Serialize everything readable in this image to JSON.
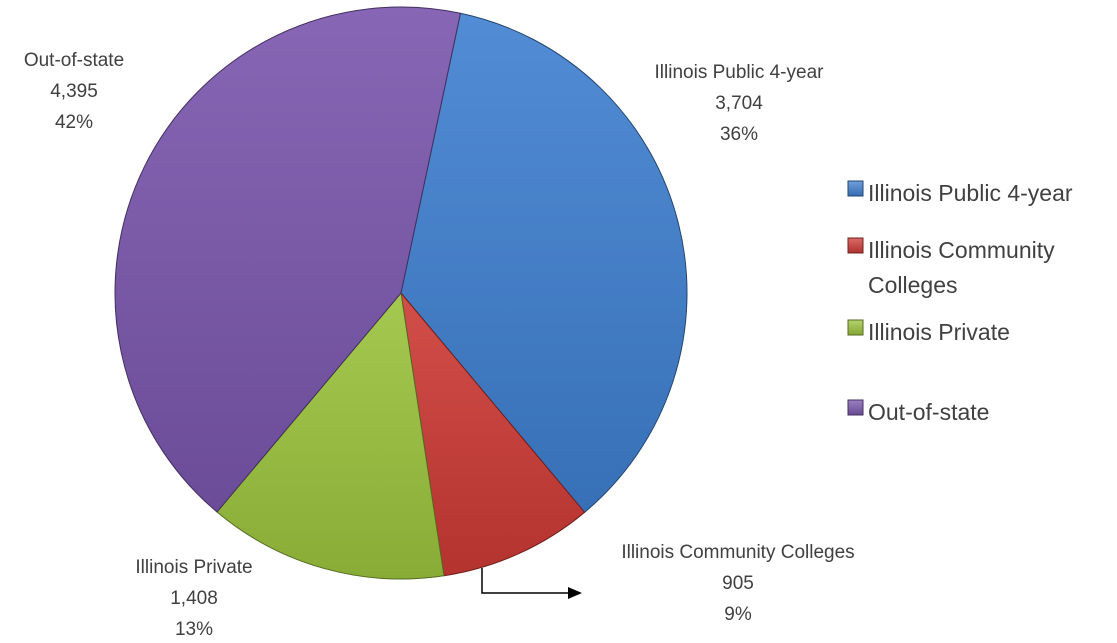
{
  "chart_data": {
    "type": "pie",
    "title": "",
    "categories": [
      "Illinois Public 4-year",
      "Illinois Community Colleges",
      "Illinois Private",
      "Out-of-state"
    ],
    "values": [
      3704,
      905,
      1408,
      4395
    ],
    "value_labels": [
      "3,704",
      "905",
      "1,408",
      "4,395"
    ],
    "percent_labels": [
      "36%",
      "9%",
      "13%",
      "42%"
    ],
    "colors": [
      "#3f7fcf",
      "#cd3a35",
      "#9bc33c",
      "#7a56ad"
    ],
    "legend": {
      "position": "right",
      "entries": [
        "Illinois Public 4-year",
        "Illinois Community Colleges",
        "Illinois Private",
        "Out-of-state"
      ]
    }
  }
}
